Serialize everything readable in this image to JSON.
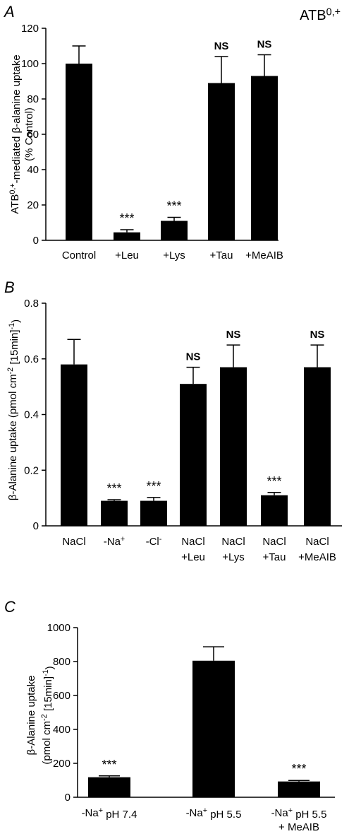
{
  "chart_data": [
    {
      "panel_label": "A",
      "corner_label": "ATB",
      "corner_label_sup": "0,+",
      "type": "bar",
      "ylabel_parts": [
        {
          "t": "ATB",
          "sup": false
        },
        {
          "t": "0,+",
          "sup": true
        },
        {
          "t": "-mediated β-alanine uptake",
          "sup": false
        }
      ],
      "ylabel2": "(% Control)",
      "ylim": [
        0,
        120
      ],
      "yticks": [
        "0",
        "20",
        "40",
        "60",
        "80",
        "100",
        "120"
      ],
      "categories": [
        [
          [
            {
              "t": "Control"
            }
          ]
        ],
        [
          [
            {
              "t": "+Leu"
            }
          ]
        ],
        [
          [
            {
              "t": "+Lys"
            }
          ]
        ],
        [
          [
            {
              "t": "+Tau"
            }
          ]
        ],
        [
          [
            {
              "t": "+MeAIB"
            }
          ]
        ]
      ],
      "values": [
        100,
        4.5,
        11,
        89,
        93
      ],
      "errors": [
        10,
        1.5,
        2,
        15,
        12
      ],
      "significance": [
        "",
        "***",
        "***",
        "NS",
        "NS"
      ]
    },
    {
      "panel_label": "B",
      "type": "bar",
      "ylabel_parts": [
        {
          "t": "β-Alanine uptake (pmol cm",
          "sup": false
        },
        {
          "t": "-2",
          "sup": true
        },
        {
          "t": " [15min]",
          "sup": false
        },
        {
          "t": "-1",
          "sup": true
        },
        {
          "t": ")",
          "sup": false
        }
      ],
      "ylim": [
        0,
        0.8
      ],
      "yticks": [
        "0",
        "0.2",
        "0.4",
        "0.6",
        "0.8"
      ],
      "categories": [
        [
          [
            {
              "t": "NaCl"
            }
          ]
        ],
        [
          [
            {
              "t": "-Na"
            },
            {
              "t": "+",
              "sup": true
            }
          ]
        ],
        [
          [
            {
              "t": "-Cl"
            },
            {
              "t": "-",
              "sup": true
            }
          ]
        ],
        [
          [
            {
              "t": "NaCl"
            }
          ],
          [
            {
              "t": "+Leu"
            }
          ]
        ],
        [
          [
            {
              "t": "NaCl"
            }
          ],
          [
            {
              "t": "+Lys"
            }
          ]
        ],
        [
          [
            {
              "t": "NaCl"
            }
          ],
          [
            {
              "t": "+Tau"
            }
          ]
        ],
        [
          [
            {
              "t": "NaCl"
            }
          ],
          [
            {
              "t": "+MeAIB"
            }
          ]
        ]
      ],
      "values": [
        0.58,
        0.09,
        0.09,
        0.51,
        0.57,
        0.11,
        0.57
      ],
      "errors": [
        0.09,
        0.004,
        0.012,
        0.06,
        0.08,
        0.01,
        0.08
      ],
      "significance": [
        "",
        "***",
        "***",
        "NS",
        "NS",
        "***",
        "NS"
      ]
    },
    {
      "panel_label": "C",
      "type": "bar",
      "ylabel_parts": [
        {
          "t": "β-Alanine uptake",
          "sup": false
        }
      ],
      "ylabel2_parts": [
        {
          "t": "(pmol cm",
          "sup": false
        },
        {
          "t": "-2",
          "sup": true
        },
        {
          "t": " [15min]",
          "sup": false
        },
        {
          "t": "-1",
          "sup": true
        },
        {
          "t": ")",
          "sup": false
        }
      ],
      "ylim": [
        0,
        1000
      ],
      "yticks": [
        "0",
        "200",
        "400",
        "600",
        "800",
        "1000"
      ],
      "categories": [
        [
          [
            {
              "t": "-Na"
            },
            {
              "t": "+",
              "sup": true
            },
            {
              "t": " pH 7.4"
            }
          ]
        ],
        [
          [
            {
              "t": "-Na"
            },
            {
              "t": "+",
              "sup": true
            },
            {
              "t": " pH 5.5"
            }
          ]
        ],
        [
          [
            {
              "t": "-Na"
            },
            {
              "t": "+",
              "sup": true
            },
            {
              "t": " pH 5.5"
            }
          ],
          [
            {
              "t": "+ MeAIB"
            }
          ]
        ]
      ],
      "values": [
        118,
        805,
        93
      ],
      "errors": [
        8,
        82,
        6
      ],
      "significance": [
        "***",
        "",
        "***"
      ]
    }
  ]
}
